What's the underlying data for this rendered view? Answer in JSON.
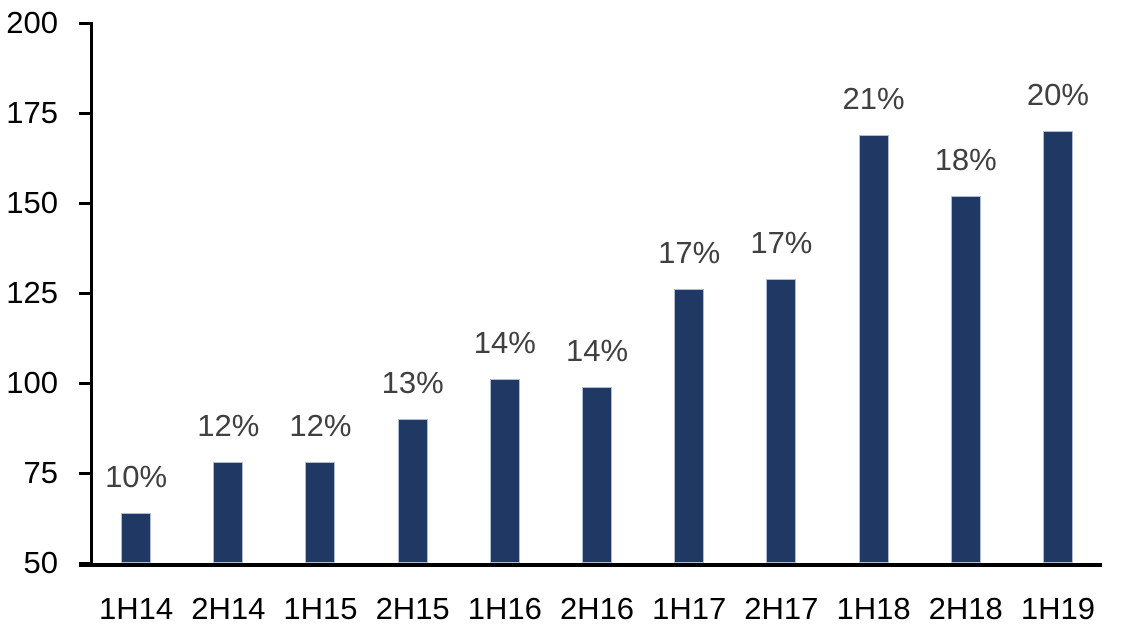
{
  "chart_data": {
    "type": "bar",
    "title": "",
    "xlabel": "",
    "ylabel": "",
    "categories": [
      "1H14",
      "2H14",
      "1H15",
      "2H15",
      "1H16",
      "2H16",
      "1H17",
      "2H17",
      "1H18",
      "2H18",
      "1H19"
    ],
    "values": [
      64,
      78,
      78,
      90,
      101,
      99,
      126,
      129,
      169,
      152,
      170
    ],
    "data_labels": [
      "10%",
      "12%",
      "12%",
      "13%",
      "14%",
      "14%",
      "17%",
      "17%",
      "21%",
      "18%",
      "20%"
    ],
    "ylim": [
      50,
      200
    ],
    "yticks": [
      50,
      75,
      100,
      125,
      150,
      175,
      200
    ],
    "ytick_labels": [
      "50",
      "75",
      "100",
      "125",
      "150",
      "175",
      "200"
    ],
    "grid": false,
    "legend_position": "none",
    "colors": {
      "bar_fill": "#1F3864",
      "bar_border": "#AEBDD3",
      "data_label": "#404040",
      "axis_text": "#000000",
      "axis_line": "#000000",
      "background": "#FFFFFF"
    }
  }
}
